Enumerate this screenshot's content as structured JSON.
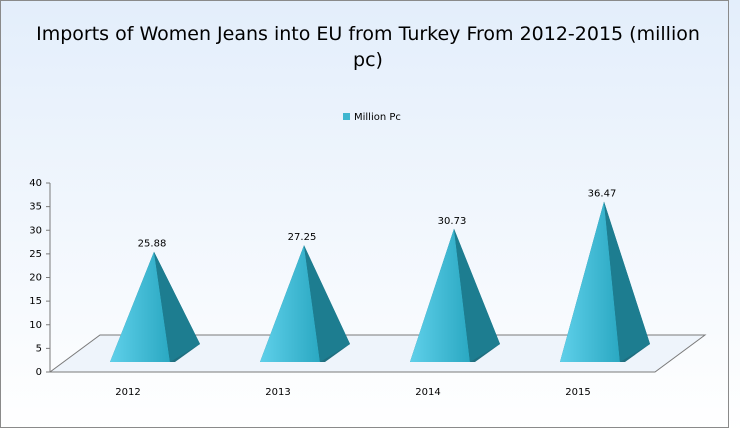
{
  "chart_data": {
    "type": "pyramid",
    "title": "Imports of Women Jeans into EU from Turkey From 2012-2015 (million pc)",
    "categories": [
      "2012",
      "2013",
      "2014",
      "2015"
    ],
    "series": [
      {
        "name": "Million Pc",
        "color": "#3fb6cf",
        "values": [
          25.88,
          27.25,
          30.73,
          36.47
        ]
      }
    ],
    "ylim": [
      0,
      40
    ],
    "yticks": [
      0,
      5,
      10,
      15,
      20,
      25,
      30,
      35,
      40
    ],
    "legend": "top"
  }
}
